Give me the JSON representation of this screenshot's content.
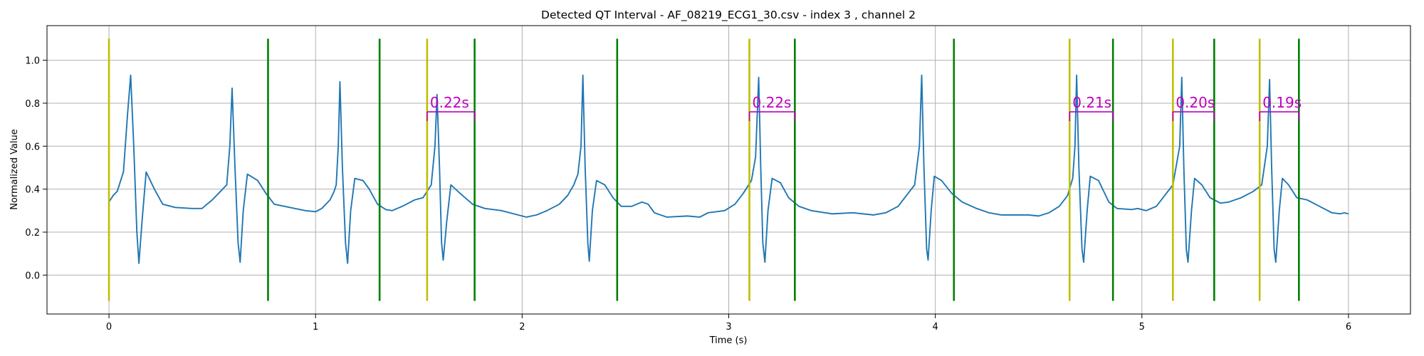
{
  "chart_data": {
    "type": "line",
    "title": "Detected QT Interval - AF_08219_ECG1_30.csv - index 3 , channel 2",
    "xlabel": "Time (s)",
    "ylabel": "Normalized Value",
    "xlim": [
      -0.3,
      6.3
    ],
    "ylim": [
      -0.181,
      1.161
    ],
    "xticks": [
      0,
      1,
      2,
      3,
      4,
      5,
      6
    ],
    "yticks": [
      {
        "value": 0,
        "label": "0.0"
      },
      0.2,
      0.4,
      0.6,
      0.8,
      {
        "value": 1,
        "label": "1.0"
      }
    ],
    "grid": true,
    "series": [
      {
        "color": "#1f77b4",
        "x": [
          0,
          0.02,
          0.04,
          0.07,
          0.09,
          0.105,
          0.12,
          0.135,
          0.145,
          0.16,
          0.18,
          0.22,
          0.26,
          0.32,
          0.4,
          0.45,
          0.5,
          0.54,
          0.57,
          0.585,
          0.596,
          0.61,
          0.625,
          0.635,
          0.65,
          0.67,
          0.72,
          0.76,
          0.8,
          0.9,
          0.95,
          1.0,
          1.03,
          1.07,
          1.09,
          1.1,
          1.11,
          1.118,
          1.13,
          1.145,
          1.155,
          1.17,
          1.19,
          1.23,
          1.26,
          1.3,
          1.34,
          1.37,
          1.42,
          1.48,
          1.52,
          1.56,
          1.578,
          1.588,
          1.6,
          1.61,
          1.618,
          1.635,
          1.655,
          1.7,
          1.76,
          1.82,
          1.9,
          1.98,
          2.02,
          2.07,
          2.12,
          2.18,
          2.22,
          2.25,
          2.27,
          2.285,
          2.294,
          2.305,
          2.318,
          2.325,
          2.34,
          2.36,
          2.4,
          2.44,
          2.48,
          2.53,
          2.58,
          2.61,
          2.64,
          2.7,
          2.8,
          2.86,
          2.9,
          2.98,
          3.03,
          3.07,
          3.11,
          3.13,
          3.145,
          3.155,
          3.165,
          3.175,
          3.19,
          3.21,
          3.25,
          3.29,
          3.34,
          3.4,
          3.5,
          3.6,
          3.7,
          3.76,
          3.82,
          3.86,
          3.9,
          3.923,
          3.934,
          3.945,
          3.958,
          3.965,
          3.98,
          3.995,
          4.03,
          4.08,
          4.13,
          4.2,
          4.26,
          4.32,
          4.45,
          4.5,
          4.55,
          4.6,
          4.64,
          4.665,
          4.676,
          4.684,
          4.695,
          4.71,
          4.718,
          4.735,
          4.75,
          4.79,
          4.84,
          4.88,
          4.95,
          4.98,
          5.02,
          5.07,
          5.11,
          5.15,
          5.183,
          5.193,
          5.203,
          5.215,
          5.223,
          5.24,
          5.255,
          5.29,
          5.33,
          5.38,
          5.42,
          5.48,
          5.54,
          5.58,
          5.607,
          5.618,
          5.628,
          5.64,
          5.648,
          5.665,
          5.68,
          5.71,
          5.75,
          5.8,
          5.86,
          5.92,
          5.96,
          5.98,
          6.0
        ],
        "values": [
          0.34,
          0.37,
          0.39,
          0.48,
          0.75,
          0.93,
          0.6,
          0.2,
          0.055,
          0.25,
          0.48,
          0.4,
          0.33,
          0.315,
          0.31,
          0.31,
          0.35,
          0.39,
          0.42,
          0.6,
          0.87,
          0.5,
          0.15,
          0.06,
          0.3,
          0.47,
          0.44,
          0.38,
          0.33,
          0.31,
          0.3,
          0.295,
          0.31,
          0.35,
          0.39,
          0.42,
          0.6,
          0.9,
          0.5,
          0.15,
          0.055,
          0.3,
          0.45,
          0.44,
          0.4,
          0.33,
          0.305,
          0.3,
          0.32,
          0.35,
          0.36,
          0.42,
          0.6,
          0.84,
          0.5,
          0.15,
          0.07,
          0.25,
          0.42,
          0.38,
          0.33,
          0.31,
          0.3,
          0.28,
          0.27,
          0.28,
          0.3,
          0.33,
          0.37,
          0.42,
          0.47,
          0.6,
          0.93,
          0.5,
          0.15,
          0.065,
          0.3,
          0.44,
          0.42,
          0.36,
          0.32,
          0.32,
          0.34,
          0.33,
          0.29,
          0.27,
          0.275,
          0.27,
          0.29,
          0.3,
          0.33,
          0.38,
          0.44,
          0.55,
          0.92,
          0.5,
          0.15,
          0.06,
          0.3,
          0.45,
          0.43,
          0.36,
          0.32,
          0.3,
          0.285,
          0.29,
          0.28,
          0.29,
          0.32,
          0.37,
          0.42,
          0.6,
          0.93,
          0.5,
          0.12,
          0.07,
          0.3,
          0.46,
          0.44,
          0.38,
          0.34,
          0.31,
          0.29,
          0.28,
          0.28,
          0.275,
          0.29,
          0.32,
          0.37,
          0.45,
          0.6,
          0.93,
          0.5,
          0.12,
          0.06,
          0.3,
          0.46,
          0.44,
          0.34,
          0.31,
          0.305,
          0.31,
          0.3,
          0.32,
          0.37,
          0.42,
          0.6,
          0.92,
          0.5,
          0.12,
          0.06,
          0.3,
          0.45,
          0.42,
          0.36,
          0.335,
          0.34,
          0.36,
          0.39,
          0.42,
          0.6,
          0.91,
          0.5,
          0.12,
          0.06,
          0.3,
          0.45,
          0.42,
          0.36,
          0.35,
          0.32,
          0.29,
          0.285,
          0.29,
          0.285
        ]
      }
    ],
    "vline_span": [
      -0.12,
      1.1
    ],
    "onsets": {
      "color": "#bfbf00",
      "x": [
        0,
        1.54,
        3.1,
        4.65,
        5.15,
        5.57
      ]
    },
    "offsets": {
      "color": "#008000",
      "x": [
        0.77,
        1.31,
        1.77,
        2.46,
        3.32,
        4.09,
        4.86,
        5.35,
        5.76
      ]
    },
    "interval_color": "#bf00bf",
    "intervals": [
      {
        "start": 1.54,
        "end": 1.77,
        "y": 0.76,
        "label": "0.22s"
      },
      {
        "start": 3.1,
        "end": 3.32,
        "y": 0.76,
        "label": "0.22s"
      },
      {
        "start": 4.65,
        "end": 4.86,
        "y": 0.76,
        "label": "0.21s"
      },
      {
        "start": 5.15,
        "end": 5.35,
        "y": 0.76,
        "label": "0.20s"
      },
      {
        "start": 5.57,
        "end": 5.76,
        "y": 0.76,
        "label": "0.19s"
      }
    ]
  }
}
